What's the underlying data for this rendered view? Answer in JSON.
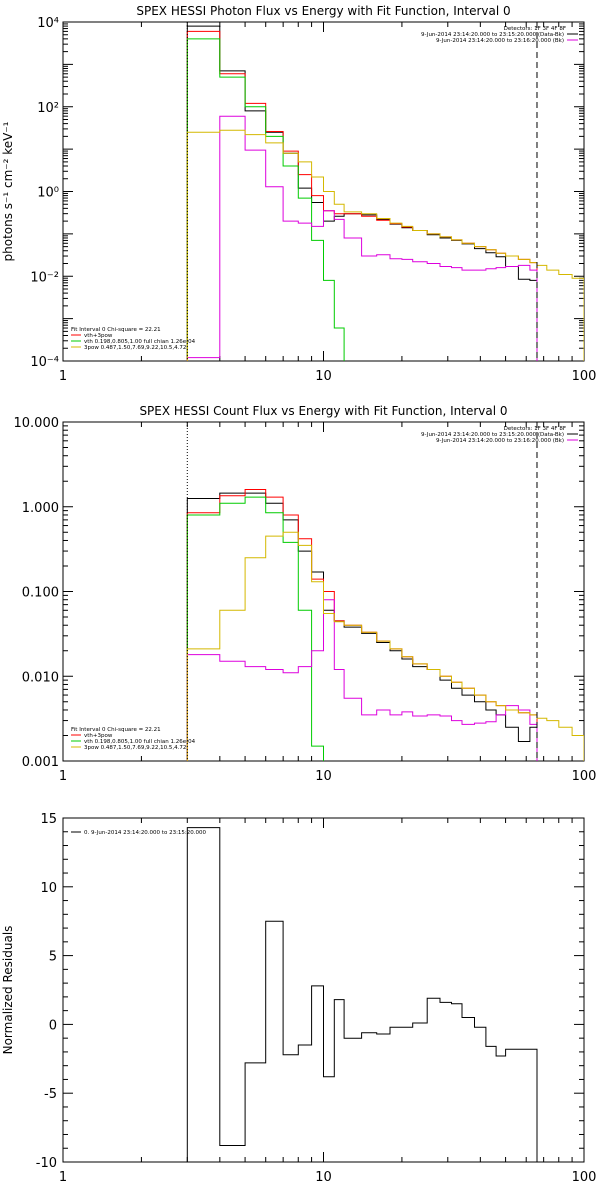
{
  "chart_data": [
    {
      "type": "line",
      "title": "SPEX HESSI Photon Flux vs Energy with Fit Function, Interval 0",
      "ylabel": "photons s⁻¹ cm⁻² keV⁻¹",
      "xscale": "log",
      "yscale": "log",
      "xlim": [
        1,
        100
      ],
      "ylim": [
        0.0001,
        10000
      ],
      "xtick_labels": [
        "1",
        "10",
        "100"
      ],
      "ytick_labels": [
        "10⁻⁴",
        "10⁻²",
        "10⁰",
        "10²",
        "10⁴"
      ],
      "detectors": "Detectors: 1F 3F 4F 8F",
      "legend_top": [
        {
          "text": "9-Jun-2014 23:14:20.000 to 23:15:20.000 (Data-Bk)",
          "color": "#000000"
        },
        {
          "text": "9-Jun-2014 23:14:20.000 to 23:16:20.000 (Bk)",
          "color": "#dd00dd"
        }
      ],
      "fit_header": "Fit Interval 0   Chi-square = 22.21",
      "legend_bottom": [
        {
          "text": "vth+3pow",
          "color": "#ff0000"
        },
        {
          "text": "vth 0.198,0.805,1.00  full chian 1.26e-04",
          "color": "#00cc00"
        },
        {
          "text": "3pow 0.487,1.50,7.69,9.22,10.5,4.72",
          "color": "#d4b800"
        }
      ],
      "vlines": [
        {
          "x": 3.0,
          "style": "dotted"
        },
        {
          "x": 66,
          "style": "dashed"
        }
      ],
      "series": [
        {
          "color": "#000000",
          "edges": [
            3,
            4,
            5,
            6,
            7,
            8,
            9,
            10,
            11,
            12,
            14,
            16,
            18,
            20,
            22,
            25,
            28,
            31,
            34,
            38,
            42,
            46,
            50,
            56,
            62,
            66
          ],
          "values": [
            8000,
            700,
            80,
            25,
            8,
            1.2,
            0.55,
            0.2,
            0.26,
            0.3,
            0.28,
            0.22,
            0.17,
            0.14,
            0.12,
            0.095,
            0.08,
            0.07,
            0.058,
            0.045,
            0.036,
            0.029,
            0.017,
            0.0085,
            0.008
          ]
        },
        {
          "color": "#ff0000",
          "edges": [
            3,
            4,
            5,
            6,
            7,
            8,
            9,
            10,
            11,
            12,
            14,
            16,
            18,
            20,
            22,
            25,
            28,
            31,
            34,
            38,
            42,
            46,
            50,
            56,
            62,
            66
          ],
          "values": [
            6000,
            600,
            120,
            26,
            9,
            2.5,
            0.8,
            0.35,
            0.3,
            0.3,
            0.26,
            0.21,
            0.175,
            0.145,
            0.12,
            0.1,
            0.085,
            0.072,
            0.06,
            0.05,
            0.042,
            0.035,
            0.03,
            0.025,
            0.021
          ]
        },
        {
          "color": "#00cc00",
          "edges": [
            3,
            4,
            5,
            6,
            7,
            8,
            9,
            10,
            11,
            12
          ],
          "values": [
            4000,
            500,
            100,
            20,
            4,
            0.7,
            0.07,
            0.008,
            0.0006,
            0.0001
          ]
        },
        {
          "color": "#dd00dd",
          "edges": [
            3,
            4,
            5,
            6,
            7,
            8,
            9,
            10,
            11,
            12,
            14,
            16,
            18,
            20,
            22,
            25,
            28,
            31,
            34,
            38,
            42,
            46,
            50,
            56,
            62,
            66
          ],
          "values": [
            0.00012,
            60,
            9.5,
            1.3,
            0.2,
            0.18,
            0.15,
            0.35,
            0.22,
            0.08,
            0.03,
            0.032,
            0.026,
            0.025,
            0.022,
            0.02,
            0.017,
            0.016,
            0.014,
            0.014,
            0.015,
            0.016,
            0.017,
            0.018,
            0.014
          ]
        },
        {
          "color": "#d4b800",
          "edges": [
            3,
            4,
            5,
            6,
            7,
            8,
            9,
            10,
            11,
            12,
            14,
            16,
            18,
            20,
            22,
            25,
            28,
            31,
            34,
            38,
            42,
            46,
            50,
            56,
            62,
            66,
            72,
            80,
            90,
            100
          ],
          "values": [
            25,
            28,
            22,
            14,
            8,
            5,
            2.2,
            1,
            0.5,
            0.33,
            0.3,
            0.23,
            0.18,
            0.15,
            0.12,
            0.1,
            0.085,
            0.072,
            0.06,
            0.05,
            0.042,
            0.035,
            0.03,
            0.025,
            0.021,
            0.018,
            0.014,
            0.011,
            0.009
          ]
        }
      ]
    },
    {
      "type": "line",
      "title": "SPEX HESSI Count Flux vs Energy with Fit Function, Interval 0",
      "ylabel": "",
      "xscale": "log",
      "yscale": "log",
      "xlim": [
        1,
        100
      ],
      "ylim": [
        0.001,
        10
      ],
      "xtick_labels": [
        "1",
        "10",
        "100"
      ],
      "ytick_labels": [
        "0.001",
        "0.010",
        "0.100",
        "1.000",
        "10.000"
      ],
      "detectors": "Detectors: 1F 3F 4F 8F",
      "legend_top": [
        {
          "text": "9-Jun-2014 23:14:20.000 to 23:15:20.000 (Data-Bk)",
          "color": "#000000"
        },
        {
          "text": "9-Jun-2014 23:14:20.000 to 23:16:20.000 (Bk)",
          "color": "#dd00dd"
        }
      ],
      "fit_header": "Fit Interval 0   Chi-square = 22.21",
      "legend_bottom": [
        {
          "text": "vth+3pow",
          "color": "#ff0000"
        },
        {
          "text": "vth 0.198,0.805,1.00  full chian 1.26e-04",
          "color": "#00cc00"
        },
        {
          "text": "3pow 0.487,1.50,7.69,9.22,10.5,4.72",
          "color": "#d4b800"
        }
      ],
      "vlines": [
        {
          "x": 3.0,
          "style": "dotted"
        },
        {
          "x": 66,
          "style": "dashed"
        }
      ],
      "series": [
        {
          "color": "#000000",
          "edges": [
            3,
            4,
            5,
            6,
            7,
            8,
            9,
            10,
            11,
            12,
            14,
            16,
            18,
            20,
            22,
            25,
            28,
            31,
            34,
            38,
            42,
            46,
            50,
            56,
            62,
            66
          ],
          "values": [
            1.25,
            1.45,
            1.45,
            1.1,
            0.7,
            0.3,
            0.17,
            0.06,
            0.045,
            0.038,
            0.032,
            0.025,
            0.02,
            0.016,
            0.013,
            0.012,
            0.009,
            0.0072,
            0.006,
            0.005,
            0.004,
            0.0035,
            0.0025,
            0.0017,
            0.0025
          ]
        },
        {
          "color": "#ff0000",
          "edges": [
            3,
            4,
            5,
            6,
            7,
            8,
            9,
            10,
            11,
            12,
            14,
            16,
            18,
            20,
            22,
            25,
            28,
            31,
            34,
            38,
            42,
            46,
            50,
            56,
            62,
            66
          ],
          "values": [
            0.85,
            1.35,
            1.6,
            1.3,
            0.8,
            0.42,
            0.14,
            0.1,
            0.045,
            0.04,
            0.033,
            0.026,
            0.021,
            0.017,
            0.014,
            0.012,
            0.01,
            0.0085,
            0.0072,
            0.006,
            0.005,
            0.0045,
            0.004,
            0.0037,
            0.0035
          ]
        },
        {
          "color": "#00cc00",
          "edges": [
            3,
            4,
            5,
            6,
            7,
            8,
            9,
            10
          ],
          "values": [
            0.8,
            1.1,
            1.3,
            0.85,
            0.38,
            0.06,
            0.0015
          ]
        },
        {
          "color": "#dd00dd",
          "edges": [
            3,
            4,
            5,
            6,
            7,
            8,
            9,
            10,
            11,
            12,
            14,
            16,
            18,
            20,
            22,
            25,
            28,
            31,
            34,
            38,
            42,
            46,
            50,
            56,
            62,
            66
          ],
          "values": [
            0.018,
            0.015,
            0.013,
            0.012,
            0.011,
            0.013,
            0.02,
            0.08,
            0.012,
            0.0055,
            0.0035,
            0.004,
            0.0035,
            0.0038,
            0.0034,
            0.0035,
            0.0034,
            0.003,
            0.0027,
            0.0028,
            0.0029,
            0.0035,
            0.0045,
            0.004,
            0.0027
          ]
        },
        {
          "color": "#d4b800",
          "edges": [
            3,
            4,
            5,
            6,
            7,
            8,
            9,
            10,
            11,
            12,
            14,
            16,
            18,
            20,
            22,
            25,
            28,
            31,
            34,
            38,
            42,
            46,
            50,
            56,
            62,
            66,
            72,
            80,
            90,
            100
          ],
          "values": [
            0.021,
            0.06,
            0.25,
            0.45,
            0.5,
            0.35,
            0.13,
            0.055,
            0.044,
            0.04,
            0.033,
            0.026,
            0.021,
            0.017,
            0.014,
            0.012,
            0.01,
            0.0085,
            0.0072,
            0.006,
            0.005,
            0.0045,
            0.004,
            0.0037,
            0.0035,
            0.0032,
            0.003,
            0.0025,
            0.002
          ]
        }
      ]
    },
    {
      "type": "line",
      "title": "",
      "ylabel": "Normalized Residuals",
      "xscale": "log",
      "yscale": "linear",
      "xlim": [
        1,
        100
      ],
      "ylim": [
        -10,
        15
      ],
      "xtick_labels": [
        "1",
        "10",
        "100"
      ],
      "ytick_labels": [
        "-10",
        "-5",
        "0",
        "5",
        "10",
        "15"
      ],
      "legend_top_left": {
        "text": "0. 9-Jun-2014 23:14:20.000 to 23:15:20.000",
        "color": "#000000"
      },
      "series": [
        {
          "color": "#000000",
          "edges": [
            3,
            4,
            5,
            6,
            7,
            8,
            9,
            10,
            11,
            12,
            14,
            16,
            18,
            20,
            22,
            25,
            28,
            31,
            34,
            38,
            42,
            46,
            50,
            56,
            62,
            66
          ],
          "values": [
            14.3,
            -8.8,
            -2.8,
            7.5,
            -2.2,
            -1.5,
            2.8,
            -3.8,
            1.8,
            -1.0,
            -0.6,
            -0.7,
            -0.2,
            -0.2,
            0.1,
            1.9,
            1.6,
            1.5,
            0.5,
            -0.2,
            -1.6,
            -2.3,
            -1.8,
            -1.8,
            -1.8
          ]
        }
      ]
    }
  ]
}
